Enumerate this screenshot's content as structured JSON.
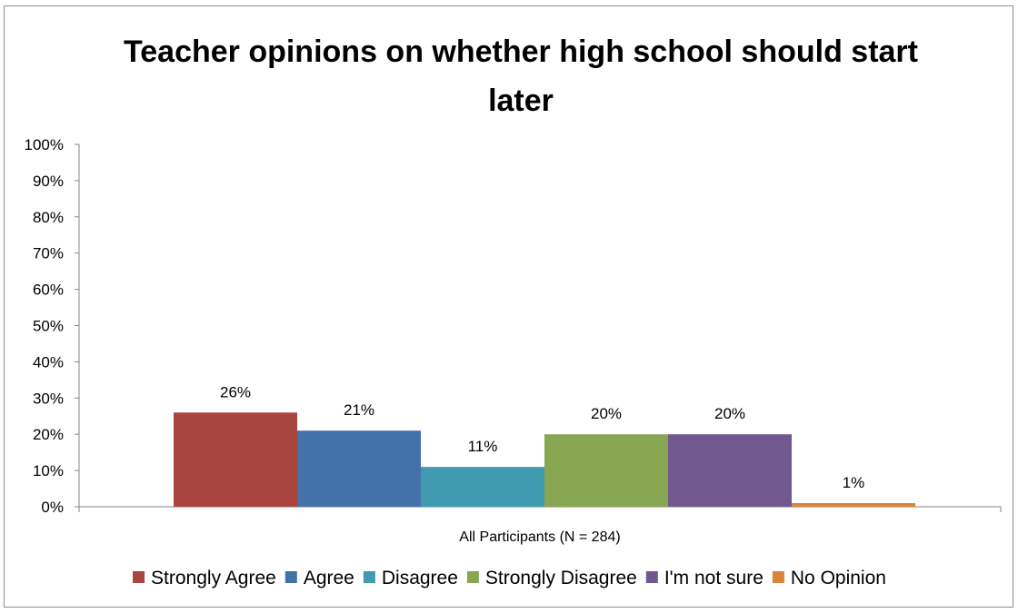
{
  "chart_data": {
    "type": "bar",
    "title": "Teacher opinions on whether high school should start later",
    "title_lines": [
      "Teacher opinions on whether high school should start",
      "later"
    ],
    "categories": [
      "All Participants (N = 284)"
    ],
    "xlabel": "",
    "ylabel": "",
    "ylim": [
      0,
      100
    ],
    "yticks": [
      "0%",
      "10%",
      "20%",
      "30%",
      "40%",
      "50%",
      "60%",
      "70%",
      "80%",
      "90%",
      "100%"
    ],
    "grid": false,
    "legend_position": "bottom",
    "series": [
      {
        "name": "Strongly Agree",
        "values": [
          26
        ],
        "label": "26%",
        "color": "#A9443F"
      },
      {
        "name": "Agree",
        "values": [
          21
        ],
        "label": "21%",
        "color": "#4571A9"
      },
      {
        "name": "Disagree",
        "values": [
          11
        ],
        "label": "11%",
        "color": "#409AB0"
      },
      {
        "name": "Strongly Disagree",
        "values": [
          20
        ],
        "label": "20%",
        "color": "#88A551"
      },
      {
        "name": "I'm not sure",
        "values": [
          20
        ],
        "label": "20%",
        "color": "#71588F"
      },
      {
        "name": "No Opinion",
        "values": [
          1
        ],
        "label": "1%",
        "color": "#DA8439"
      }
    ]
  }
}
